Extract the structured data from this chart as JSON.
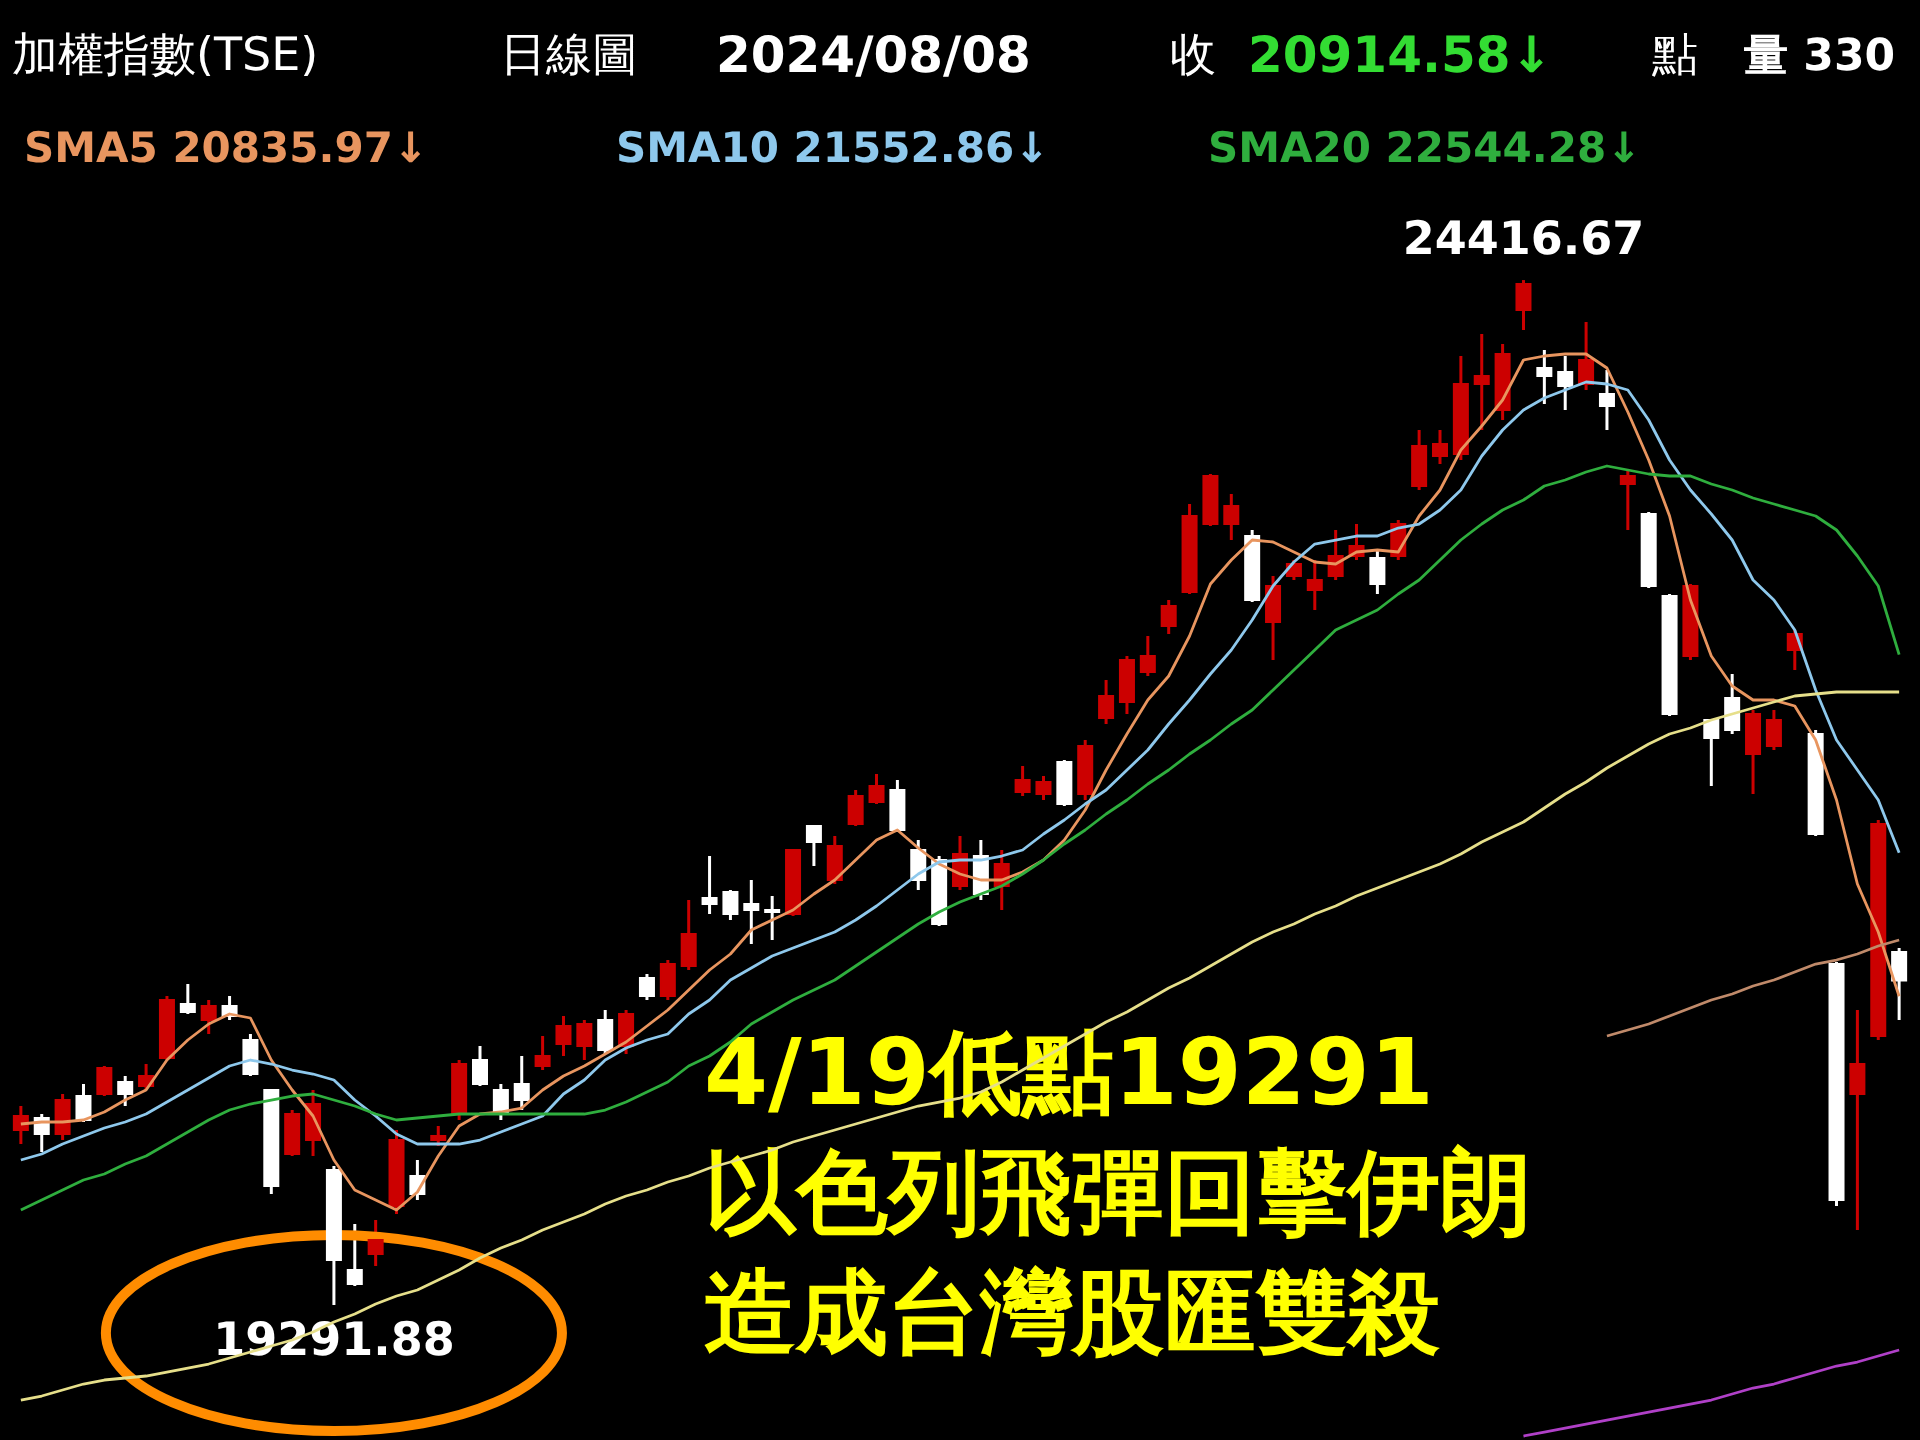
{
  "chart_data": {
    "type": "candlestick",
    "title": "加權指數(TSE)",
    "categories": [
      null,
      null,
      null,
      null,
      null,
      null,
      null,
      null,
      null,
      null,
      null,
      null,
      null,
      null,
      null,
      null,
      null,
      null,
      null,
      null,
      null,
      null,
      null,
      null,
      null,
      null,
      null,
      null,
      null,
      null,
      null,
      null,
      null,
      null,
      null,
      null,
      null,
      null,
      null,
      null,
      null,
      null,
      null,
      null,
      null,
      null,
      null,
      null,
      null,
      null,
      null,
      null,
      null,
      null,
      null,
      null,
      null,
      null,
      null,
      null,
      null,
      null,
      null,
      null,
      null,
      null,
      null,
      null,
      null,
      null,
      null,
      null,
      null,
      null,
      null,
      null,
      null,
      null,
      null,
      null,
      null,
      null,
      null,
      null,
      null,
      null,
      null,
      null,
      null,
      null,
      null
    ],
    "ohlc": [
      [
        20167,
        20287,
        20097,
        20237
      ],
      [
        20227,
        20247,
        20057,
        20147
      ],
      [
        20147,
        20347,
        20117,
        20317
      ],
      [
        20337,
        20397,
        20207,
        20217
      ],
      [
        20347,
        20487,
        20337,
        20477
      ],
      [
        20407,
        20437,
        20287,
        20347
      ],
      [
        20387,
        20497,
        20367,
        20437
      ],
      [
        20527,
        20837,
        20517,
        20817
      ],
      [
        20797,
        20897,
        20747,
        20757
      ],
      [
        20717,
        20817,
        20647,
        20787
      ],
      [
        20787,
        20837,
        20717,
        20737
      ],
      [
        20617,
        20647,
        20437,
        20447
      ],
      [
        20367,
        20367,
        19847,
        19887
      ],
      [
        20047,
        20267,
        20037,
        20247
      ],
      [
        20117,
        20367,
        20037,
        20297
      ],
      [
        19967,
        19987,
        19291.88,
        19517
      ],
      [
        19467,
        19697,
        19387,
        19397
      ],
      [
        19547,
        19717,
        19487,
        19617
      ],
      [
        19787,
        20167,
        19747,
        20117
      ],
      [
        19937,
        20017,
        19817,
        19847
      ],
      [
        20117,
        20187,
        20087,
        20137
      ],
      [
        20247,
        20517,
        20217,
        20497
      ],
      [
        20517,
        20587,
        20387,
        20397
      ],
      [
        20367,
        20397,
        20217,
        20247
      ],
      [
        20397,
        20537,
        20267,
        20317
      ],
      [
        20487,
        20637,
        20467,
        20537
      ],
      [
        20597,
        20737,
        20537,
        20687
      ],
      [
        20587,
        20717,
        20517,
        20697
      ],
      [
        20717,
        20767,
        20547,
        20567
      ],
      [
        20587,
        20767,
        20547,
        20747
      ],
      [
        20927,
        20947,
        20817,
        20837
      ],
      [
        20837,
        21017,
        20817,
        20997
      ],
      [
        20987,
        21317,
        20967,
        21147
      ],
      [
        21327,
        21537,
        21247,
        21297
      ],
      [
        21357,
        21367,
        21217,
        21247
      ],
      [
        21297,
        21417,
        21097,
        21267
      ],
      [
        21267,
        21337,
        21117,
        21257
      ],
      [
        21247,
        21567,
        21237,
        21567
      ],
      [
        21687,
        21687,
        21487,
        21607
      ],
      [
        21417,
        21637,
        21397,
        21587
      ],
      [
        21697,
        21867,
        21687,
        21837
      ],
      [
        21807,
        21947,
        21797,
        21887
      ],
      [
        21867,
        21917,
        21657,
        21667
      ],
      [
        21567,
        21617,
        21367,
        21417
      ],
      [
        21517,
        21537,
        21187,
        21197
      ],
      [
        21387,
        21637,
        21367,
        21547
      ],
      [
        21537,
        21617,
        21317,
        21347
      ],
      [
        21387,
        21567,
        21267,
        21497
      ],
      [
        21857,
        21987,
        21837,
        21917
      ],
      [
        21847,
        21937,
        21817,
        21907
      ],
      [
        22007,
        22017,
        21787,
        21797
      ],
      [
        21847,
        22117,
        21817,
        22087
      ],
      [
        22227,
        22417,
        22197,
        22337
      ],
      [
        22307,
        22537,
        22247,
        22517
      ],
      [
        22457,
        22637,
        22437,
        22537
      ],
      [
        22687,
        22817,
        22647,
        22787
      ],
      [
        22857,
        23297,
        22847,
        23237
      ],
      [
        23197,
        23447,
        23187,
        23437
      ],
      [
        23197,
        23347,
        23117,
        23287
      ],
      [
        23137,
        23167,
        22807,
        22817
      ],
      [
        22707,
        22937,
        22517,
        22887
      ],
      [
        22937,
        23017,
        22917,
        22997
      ],
      [
        22867,
        23017,
        22767,
        22917
      ],
      [
        22937,
        23167,
        22917,
        23037
      ],
      [
        23037,
        23197,
        23017,
        23087
      ],
      [
        23027,
        23067,
        22847,
        22897
      ],
      [
        23037,
        23217,
        23017,
        23197
      ],
      [
        23387,
        23667,
        23367,
        23587
      ],
      [
        23537,
        23667,
        23497,
        23597
      ],
      [
        23547,
        24037,
        23517,
        23897
      ],
      [
        23897,
        24147,
        23667,
        23937
      ],
      [
        23767,
        24097,
        23717,
        24047
      ],
      [
        24267,
        24416.67,
        24167,
        24397
      ],
      [
        23977,
        24067,
        23797,
        23937
      ],
      [
        23957,
        24037,
        23767,
        23887
      ],
      [
        23897,
        24207,
        23867,
        24017
      ],
      [
        23847,
        23967,
        23667,
        23787
      ],
      [
        23397,
        23467,
        23167,
        23437
      ],
      [
        23247,
        23257,
        22877,
        22887
      ],
      [
        22837,
        22847,
        22237,
        22247
      ],
      [
        22537,
        22897,
        22517,
        22887
      ],
      [
        22217,
        22217,
        21887,
        22127
      ],
      [
        22327,
        22447,
        22147,
        22167
      ],
      [
        22047,
        22267,
        21847,
        22247
      ],
      [
        22087,
        22267,
        22067,
        22217
      ],
      [
        22567,
        22667,
        22467,
        22647
      ],
      [
        22147,
        22167,
        21637,
        21647
      ],
      [
        20997,
        21007,
        19787,
        19817
      ],
      [
        20347,
        20767,
        19667,
        20497
      ],
      [
        20637,
        21717,
        20617,
        21697
      ],
      [
        21057,
        21077,
        20717,
        20914.58
      ]
    ],
    "colors": [
      "#cc0000",
      "#ffffff",
      "#cc0000",
      "#ffffff",
      "#cc0000",
      "#ffffff",
      "#cc0000",
      "#cc0000",
      "#ffffff",
      "#cc0000",
      "#ffffff",
      "#ffffff",
      "#ffffff",
      "#cc0000",
      "#cc0000",
      "#ffffff",
      "#ffffff",
      "#cc0000",
      "#cc0000",
      "#ffffff",
      "#cc0000",
      "#cc0000",
      "#ffffff",
      "#ffffff",
      "#ffffff",
      "#cc0000",
      "#cc0000",
      "#cc0000",
      "#ffffff",
      "#cc0000",
      "#ffffff",
      "#cc0000",
      "#cc0000",
      "#ffffff",
      "#ffffff",
      "#ffffff",
      "#ffffff",
      "#cc0000",
      "#ffffff",
      "#cc0000",
      "#cc0000",
      "#cc0000",
      "#ffffff",
      "#ffffff",
      "#ffffff",
      "#cc0000",
      "#ffffff",
      "#cc0000",
      "#cc0000",
      "#cc0000",
      "#ffffff",
      "#cc0000",
      "#cc0000",
      "#cc0000",
      "#cc0000",
      "#cc0000",
      "#cc0000",
      "#cc0000",
      "#cc0000",
      "#ffffff",
      "#cc0000",
      "#cc0000",
      "#cc0000",
      "#cc0000",
      "#cc0000",
      "#ffffff",
      "#cc0000",
      "#cc0000",
      "#cc0000",
      "#cc0000",
      "#cc0000",
      "#cc0000",
      "#cc0000",
      "#ffffff",
      "#ffffff",
      "#cc0000",
      "#ffffff",
      "#cc0000",
      "#ffffff",
      "#ffffff",
      "#cc0000",
      "#ffffff",
      "#ffffff",
      "#cc0000",
      "#cc0000",
      "#cc0000",
      "#ffffff",
      "#ffffff",
      "#cc0000",
      "#cc0000",
      "#ffffff"
    ],
    "series": [
      {
        "name": "SMA5 20835.97↓",
        "type": "line",
        "color": "#e8955f",
        "values": [
          20197,
          20207,
          20207,
          20217,
          20257,
          20317,
          20367,
          20517,
          20617,
          20697,
          20747,
          20727,
          20517,
          20367,
          20237,
          20017,
          19867,
          19817,
          19767,
          19857,
          20037,
          20187,
          20247,
          20257,
          20277,
          20367,
          20437,
          20487,
          20547,
          20607,
          20687,
          20767,
          20867,
          20967,
          21047,
          21167,
          21217,
          21267,
          21347,
          21417,
          21517,
          21617,
          21667,
          21577,
          21497,
          21447,
          21417,
          21417,
          21457,
          21517,
          21617,
          21767,
          21967,
          22147,
          22317,
          22437,
          22637,
          22897,
          23017,
          23117,
          23107,
          23057,
          23007,
          22997,
          23057,
          23067,
          23057,
          23237,
          23367,
          23567,
          23687,
          23817,
          24017,
          24037,
          24047,
          24047,
          23977,
          23757,
          23517,
          23237,
          22817,
          22537,
          22387,
          22317,
          22317,
          22287,
          22117,
          21817,
          21397,
          21157,
          20835.97
        ]
      },
      {
        "name": "SMA10 21552.86↓",
        "type": "line",
        "color": "#8ec8ec",
        "values": [
          20017,
          20047,
          20097,
          20137,
          20177,
          20207,
          20247,
          20307,
          20367,
          20427,
          20487,
          20517,
          20497,
          20467,
          20447,
          20417,
          20317,
          20237,
          20147,
          20097,
          20097,
          20097,
          20117,
          20157,
          20197,
          20237,
          20347,
          20417,
          20517,
          20577,
          20617,
          20647,
          20747,
          20817,
          20917,
          20977,
          21037,
          21077,
          21117,
          21157,
          21217,
          21287,
          21367,
          21447,
          21507,
          21517,
          21517,
          21537,
          21567,
          21647,
          21717,
          21797,
          21867,
          21967,
          22067,
          22197,
          22317,
          22447,
          22567,
          22717,
          22887,
          23007,
          23097,
          23117,
          23137,
          23137,
          23177,
          23197,
          23267,
          23367,
          23537,
          23667,
          23767,
          23827,
          23867,
          23907,
          23897,
          23867,
          23717,
          23517,
          23367,
          23247,
          23117,
          22917,
          22817,
          22667,
          22367,
          22117,
          21967,
          21817,
          21552.86
        ]
      },
      {
        "name": "SMA20 22544.28↓",
        "type": "line",
        "color": "#2fae3e",
        "values": [
          19767,
          19817,
          19867,
          19917,
          19947,
          19997,
          20037,
          20097,
          20157,
          20217,
          20267,
          20297,
          20317,
          20337,
          20347,
          20317,
          20287,
          20247,
          20217,
          20227,
          20237,
          20247,
          20247,
          20247,
          20247,
          20247,
          20247,
          20247,
          20267,
          20307,
          20357,
          20407,
          20487,
          20537,
          20607,
          20697,
          20757,
          20817,
          20867,
          20917,
          20987,
          21057,
          21127,
          21197,
          21257,
          21307,
          21347,
          21387,
          21447,
          21517,
          21597,
          21667,
          21747,
          21817,
          21897,
          21967,
          22047,
          22117,
          22197,
          22267,
          22367,
          22467,
          22567,
          22667,
          22717,
          22767,
          22847,
          22917,
          23017,
          23117,
          23197,
          23267,
          23317,
          23387,
          23417,
          23457,
          23487,
          23467,
          23447,
          23437,
          23437,
          23397,
          23367,
          23327,
          23297,
          23267,
          23237,
          23167,
          23037,
          22887,
          22544.28
        ]
      },
      {
        "type": "line",
        "color": "#e6df8a",
        "values": [
          18817,
          18837,
          18867,
          18897,
          18917,
          18927,
          18937,
          18957,
          18977,
          18997,
          19027,
          19057,
          19087,
          19117,
          19157,
          19207,
          19247,
          19297,
          19337,
          19367,
          19417,
          19467,
          19527,
          19577,
          19617,
          19667,
          19707,
          19747,
          19797,
          19837,
          19867,
          19907,
          19937,
          19977,
          20007,
          20037,
          20067,
          20107,
          20137,
          20167,
          20197,
          20227,
          20257,
          20287,
          20307,
          20327,
          20357,
          20407,
          20467,
          20527,
          20587,
          20647,
          20707,
          20757,
          20817,
          20877,
          20927,
          20987,
          21047,
          21107,
          21157,
          21197,
          21247,
          21287,
          21337,
          21377,
          21417,
          21457,
          21497,
          21547,
          21607,
          21657,
          21707,
          21777,
          21847,
          21907,
          21977,
          22037,
          22097,
          22147,
          22177,
          22217,
          22247,
          22277,
          22307,
          22337,
          22347,
          22357,
          22357,
          22357,
          22357
        ]
      },
      {
        "type": "line",
        "color": "#c08a6a",
        "values": [
          null,
          null,
          null,
          null,
          null,
          null,
          null,
          null,
          null,
          null,
          null,
          null,
          null,
          null,
          null,
          null,
          null,
          null,
          null,
          null,
          null,
          null,
          null,
          null,
          null,
          null,
          null,
          null,
          null,
          null,
          null,
          null,
          null,
          null,
          null,
          null,
          null,
          null,
          null,
          null,
          null,
          null,
          null,
          null,
          null,
          null,
          null,
          null,
          null,
          null,
          null,
          null,
          null,
          null,
          null,
          null,
          null,
          null,
          null,
          null,
          null,
          null,
          null,
          null,
          null,
          null,
          null,
          null,
          null,
          null,
          null,
          null,
          null,
          null,
          null,
          null,
          20637,
          20667,
          20697,
          20737,
          20777,
          20817,
          20847,
          20887,
          20917,
          20957,
          20997,
          21017,
          21047,
          21087,
          21117
        ]
      },
      {
        "type": "line",
        "color": "#b040c8",
        "values": [
          null,
          null,
          null,
          null,
          null,
          null,
          null,
          null,
          null,
          null,
          null,
          null,
          null,
          null,
          null,
          null,
          null,
          null,
          null,
          null,
          null,
          null,
          null,
          null,
          null,
          null,
          null,
          null,
          null,
          null,
          null,
          null,
          null,
          null,
          null,
          null,
          null,
          null,
          null,
          null,
          null,
          null,
          null,
          null,
          null,
          null,
          null,
          null,
          null,
          null,
          null,
          null,
          null,
          null,
          null,
          null,
          null,
          null,
          null,
          null,
          null,
          null,
          null,
          null,
          null,
          null,
          null,
          null,
          null,
          null,
          null,
          null,
          18637,
          18657,
          18677,
          18697,
          18717,
          18737,
          18757,
          18777,
          18797,
          18817,
          18847,
          18877,
          18897,
          18927,
          18957,
          18987,
          19007,
          19037,
          19067
        ]
      }
    ],
    "ylim": [
      18617,
      25817
    ],
    "tick_labels": false,
    "legend": "top",
    "annotations": [
      "日線圖",
      "2024/08/08",
      "收",
      "20914.58↓",
      "點",
      "量 330",
      "4/19低點19291",
      "以色列飛彈回擊伊朗",
      "造成台灣股匯雙殺",
      {
        "text": "24416.67",
        "y": 24416.67
      },
      {
        "text": "19291.88",
        "y": 19291.88
      }
    ]
  }
}
